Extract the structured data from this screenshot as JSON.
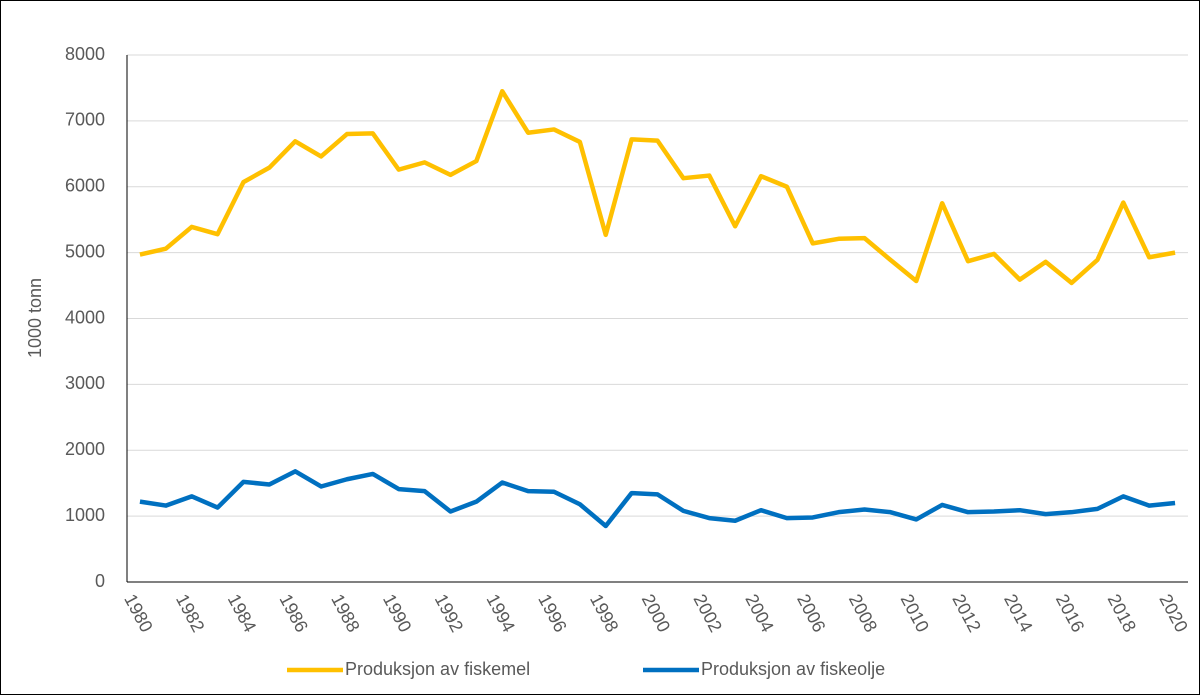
{
  "chart_data": {
    "type": "line",
    "ylabel": "1000 tonn",
    "categories": [
      "1980",
      null,
      "1982",
      null,
      "1984",
      null,
      "1986",
      null,
      "1988",
      null,
      "1990",
      null,
      "1992",
      null,
      "1994",
      null,
      "1996",
      null,
      "1998",
      null,
      "2000",
      null,
      "2002",
      null,
      "2004",
      null,
      "2006",
      null,
      "2008",
      null,
      "2010",
      null,
      "2012",
      null,
      "2014",
      null,
      "2016",
      null,
      "2018",
      null,
      "2020"
    ],
    "series": [
      {
        "name": "Produksjon av fiskemel",
        "color": "#FFC000",
        "values": [
          4970,
          5060,
          5390,
          5280,
          6070,
          6290,
          6690,
          6460,
          6800,
          6810,
          6260,
          6370,
          6180,
          6390,
          7450,
          6820,
          6870,
          6680,
          5270,
          6720,
          6700,
          6130,
          6170,
          5400,
          6160,
          6000,
          5140,
          5210,
          5220,
          4890,
          4570,
          5750,
          4870,
          4980,
          4590,
          4860,
          4540,
          4890,
          5760,
          4930,
          5000
        ]
      },
      {
        "name": "Produksjon av fiskeolje",
        "color": "#0070C0",
        "values": [
          1220,
          1160,
          1300,
          1130,
          1520,
          1480,
          1680,
          1450,
          1560,
          1640,
          1410,
          1380,
          1070,
          1220,
          1510,
          1380,
          1370,
          1180,
          850,
          1350,
          1330,
          1080,
          970,
          930,
          1090,
          970,
          980,
          1060,
          1100,
          1060,
          950,
          1170,
          1060,
          1070,
          1090,
          1030,
          1060,
          1110,
          1300,
          1160,
          1200
        ]
      }
    ],
    "ylim": [
      0,
      8000
    ],
    "yticks": [
      0,
      1000,
      2000,
      3000,
      4000,
      5000,
      6000,
      7000,
      8000
    ],
    "grid": true,
    "legend": "bottom"
  }
}
